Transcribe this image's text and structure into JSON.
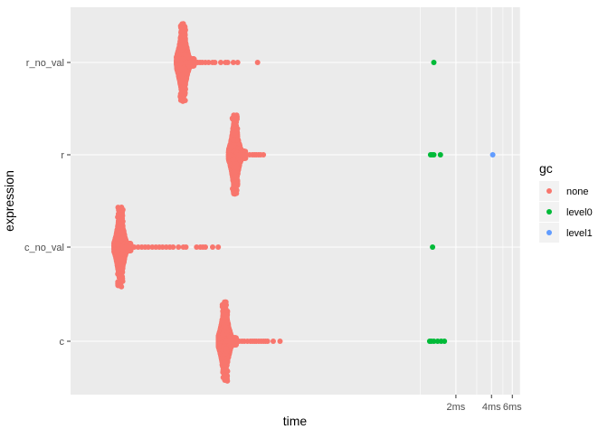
{
  "chart_data": {
    "type": "scatter",
    "title": "",
    "xlabel": "time",
    "ylabel": "expression",
    "x_scale": "log",
    "x_unit": "ms",
    "x_range_ms": [
      0.0011,
      7.0
    ],
    "categories": [
      "r_no_val",
      "r",
      "c_no_val",
      "c"
    ],
    "x_tick_labels": [
      "2ms",
      "4ms",
      "6ms"
    ],
    "x_ticks_ms": [
      2,
      4,
      6
    ],
    "x_minor_gridlines_ms": [
      1,
      3,
      5,
      7
    ],
    "grid": true,
    "legend": {
      "title": "gc",
      "position": "right",
      "entries": [
        {
          "name": "none",
          "color": "#F8766D"
        },
        {
          "name": "level0",
          "color": "#00BA38"
        },
        {
          "name": "level1",
          "color": "#619CFF"
        }
      ]
    },
    "panel_background": "#EBEBEB",
    "series": [
      {
        "name": "none",
        "color": "#F8766D",
        "groups": [
          {
            "category": "r_no_val",
            "mode_ms": 0.0098,
            "spread": 0.5,
            "tail_points_ms": [
              0.0107,
              0.0112,
              0.0118,
              0.0122,
              0.0126,
              0.0131,
              0.0137,
              0.0143,
              0.0152,
              0.0162,
              0.0175,
              0.0183,
              0.0205,
              0.0225,
              0.0235,
              0.0262,
              0.0285,
              0.042
            ]
          },
          {
            "category": "r",
            "mode_ms": 0.027,
            "spread": 0.44,
            "tail_points_ms": [
              0.0295,
              0.031,
              0.0325,
              0.034,
              0.036,
              0.038,
              0.0395,
              0.041,
              0.0428,
              0.0445,
              0.047
            ]
          },
          {
            "category": "c_no_val",
            "mode_ms": 0.0029,
            "spread": 0.42,
            "tail_points_ms": [
              0.0032,
              0.0035,
              0.0038,
              0.0041,
              0.0044,
              0.0047,
              0.005,
              0.0054,
              0.0058,
              0.0062,
              0.0066,
              0.0071,
              0.0076,
              0.0081,
              0.009,
              0.0099,
              0.0104,
              0.0128,
              0.0138,
              0.0145,
              0.0152,
              0.0175,
              0.0195
            ]
          },
          {
            "category": "c",
            "mode_ms": 0.0222,
            "spread": 0.5,
            "tail_points_ms": [
              0.0242,
              0.026,
              0.0278,
              0.0295,
              0.031,
              0.0325,
              0.0345,
              0.0365,
              0.038,
              0.0395,
              0.041,
              0.043,
              0.045,
              0.047,
              0.049,
              0.051,
              0.057,
              0.065
            ]
          }
        ]
      },
      {
        "name": "level0",
        "color": "#00BA38",
        "points": [
          {
            "category": "r_no_val",
            "x_ms": 1.3
          },
          {
            "category": "r",
            "x_ms": 1.22
          },
          {
            "category": "r",
            "x_ms": 1.26
          },
          {
            "category": "r",
            "x_ms": 1.3
          },
          {
            "category": "r",
            "x_ms": 1.48
          },
          {
            "category": "c_no_val",
            "x_ms": 1.27
          },
          {
            "category": "c",
            "x_ms": 1.2
          },
          {
            "category": "c",
            "x_ms": 1.24
          },
          {
            "category": "c",
            "x_ms": 1.3
          },
          {
            "category": "c",
            "x_ms": 1.4
          },
          {
            "category": "c",
            "x_ms": 1.5
          },
          {
            "category": "c",
            "x_ms": 1.6
          }
        ]
      },
      {
        "name": "level1",
        "color": "#619CFF",
        "points": [
          {
            "category": "r",
            "x_ms": 4.1
          }
        ]
      }
    ]
  }
}
